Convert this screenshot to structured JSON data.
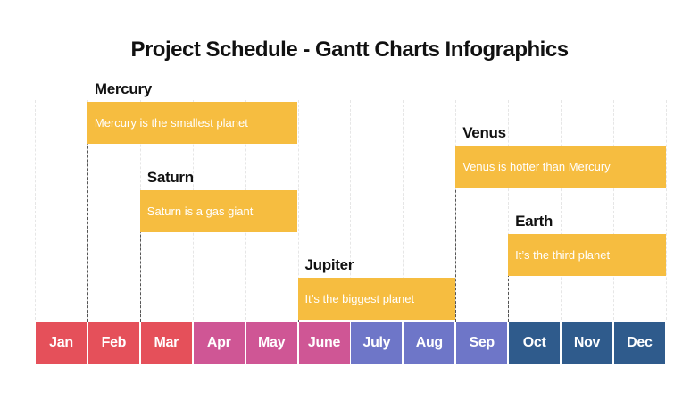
{
  "title": "Project Schedule - Gantt Charts Infographics",
  "colors": {
    "bar": "#f6bd40",
    "months": [
      "#e5505a",
      "#e5505a",
      "#e5505a",
      "#cf5695",
      "#cf5695",
      "#cf5695",
      "#6e76c8",
      "#6e76c8",
      "#6e76c8",
      "#2f5b8c",
      "#2f5b8c",
      "#2f5b8c"
    ]
  },
  "chart_data": {
    "type": "gantt",
    "months": [
      "Jan",
      "Feb",
      "Mar",
      "Apr",
      "May",
      "June",
      "July",
      "Aug",
      "Sep",
      "Oct",
      "Nov",
      "Dec"
    ],
    "tasks": [
      {
        "name": "Mercury",
        "description": "Mercury is the smallest planet",
        "start_month": 2,
        "end_month": 5
      },
      {
        "name": "Saturn",
        "description": "Saturn is a gas giant",
        "start_month": 3,
        "end_month": 5
      },
      {
        "name": "Jupiter",
        "description": "It’s the biggest planet",
        "start_month": 6,
        "end_month": 8
      },
      {
        "name": "Venus",
        "description": "Venus is hotter than Mercury",
        "start_month": 9,
        "end_month": 12
      },
      {
        "name": "Earth",
        "description": "It’s the third planet",
        "start_month": 10,
        "end_month": 12
      }
    ]
  }
}
